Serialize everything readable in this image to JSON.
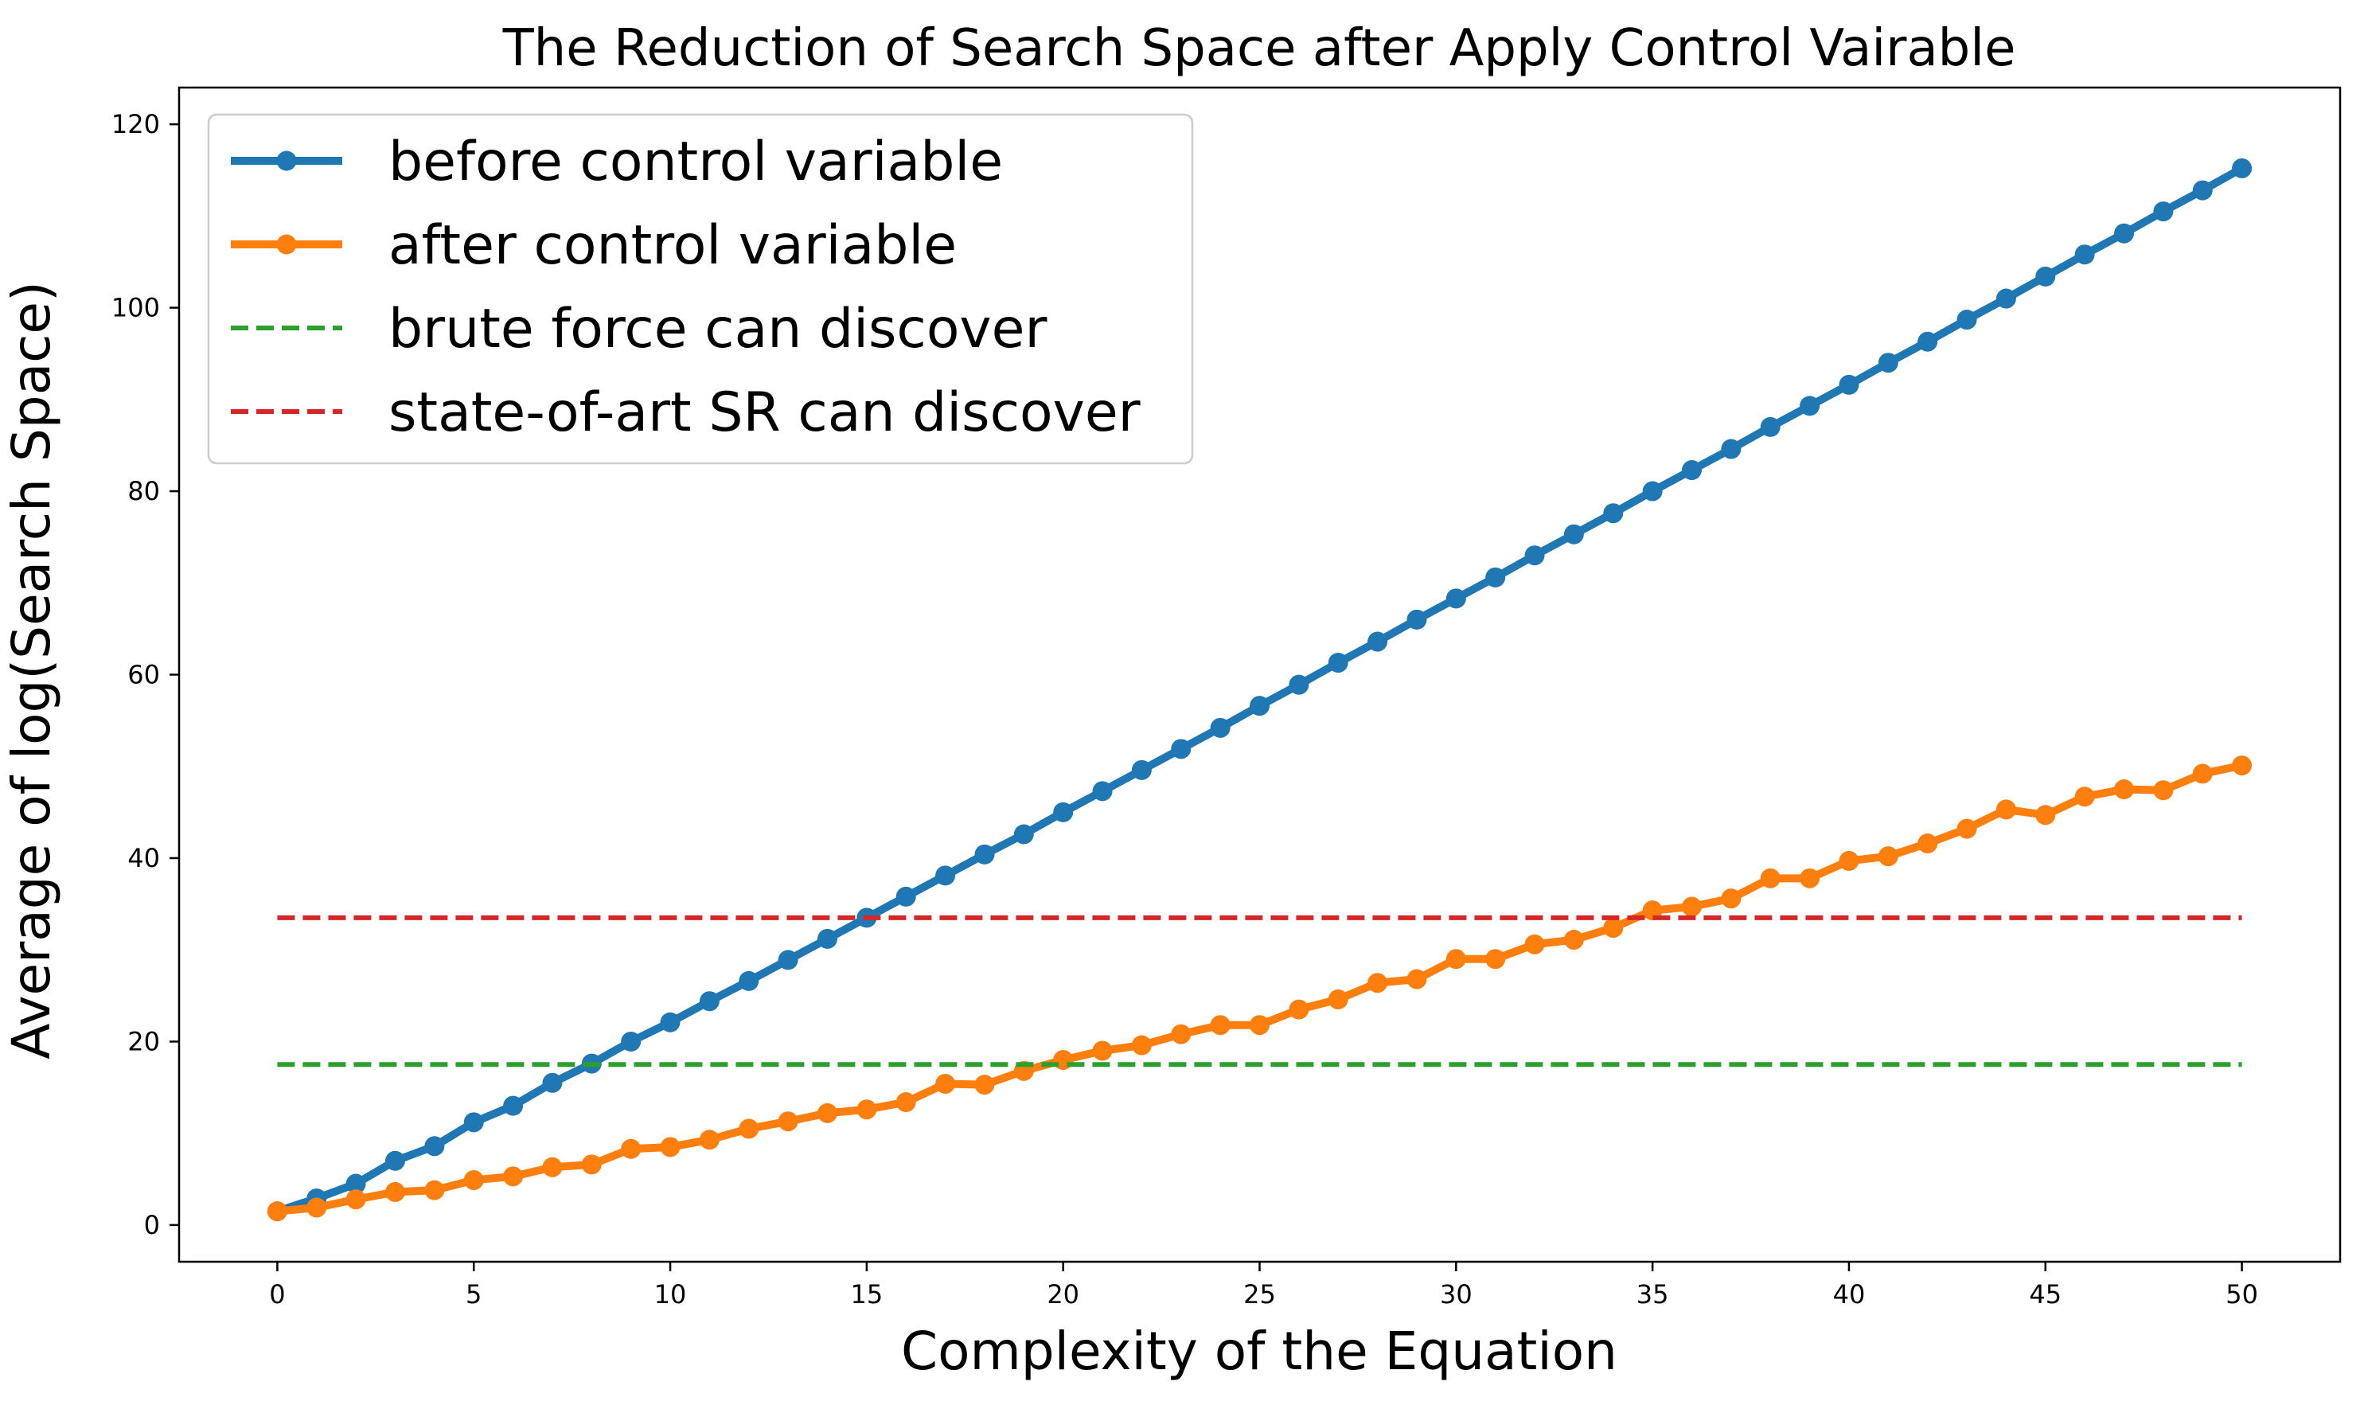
{
  "chart_data": {
    "type": "line",
    "title": "The Reduction of Search Space after Apply Control Vairable",
    "xlabel": "Complexity of the Equation",
    "ylabel": "Average of log(Search Space)",
    "xlim": [
      -2.5,
      52.5
    ],
    "ylim": [
      -4,
      124
    ],
    "xticks": [
      0,
      5,
      10,
      15,
      20,
      25,
      30,
      35,
      40,
      45,
      50
    ],
    "yticks": [
      0,
      20,
      40,
      60,
      80,
      100,
      120
    ],
    "grid": false,
    "legend_position": "top-left",
    "x": [
      0,
      1,
      2,
      3,
      4,
      5,
      6,
      7,
      8,
      9,
      10,
      11,
      12,
      13,
      14,
      15,
      16,
      17,
      18,
      19,
      20,
      21,
      22,
      23,
      24,
      25,
      26,
      27,
      28,
      29,
      30,
      31,
      32,
      33,
      34,
      35,
      36,
      37,
      38,
      39,
      40,
      41,
      42,
      43,
      44,
      45,
      46,
      47,
      48,
      49,
      50
    ],
    "series": [
      {
        "name": "before control variable",
        "color": "#1f77b4",
        "style": "line-marker",
        "values": [
          1.5,
          2.9,
          4.5,
          7.0,
          8.6,
          11.2,
          13.0,
          15.5,
          17.6,
          20.0,
          22.1,
          24.4,
          26.6,
          28.9,
          31.2,
          33.5,
          35.8,
          38.1,
          40.4,
          42.6,
          45.0,
          47.3,
          49.6,
          51.9,
          54.2,
          56.6,
          58.9,
          61.3,
          63.6,
          66.0,
          68.3,
          70.6,
          73.0,
          75.3,
          77.6,
          80.0,
          82.3,
          84.6,
          87.0,
          89.3,
          91.6,
          94.0,
          96.3,
          98.7,
          101.0,
          103.4,
          105.8,
          108.1,
          110.5,
          112.8,
          115.2
        ]
      },
      {
        "name": "after control variable",
        "color": "#ff7f0e",
        "style": "line-marker",
        "values": [
          1.5,
          1.9,
          2.8,
          3.6,
          3.8,
          4.9,
          5.3,
          6.3,
          6.6,
          8.3,
          8.5,
          9.3,
          10.5,
          11.3,
          12.2,
          12.6,
          13.4,
          15.4,
          15.3,
          16.8,
          18.0,
          19.0,
          19.6,
          20.8,
          21.8,
          21.8,
          23.5,
          24.6,
          26.4,
          26.8,
          29.0,
          29.0,
          30.6,
          31.1,
          32.4,
          34.3,
          34.7,
          35.6,
          37.8,
          37.8,
          39.7,
          40.2,
          41.6,
          43.2,
          45.3,
          44.7,
          46.7,
          47.5,
          47.4,
          49.2,
          50.1
        ]
      },
      {
        "name": "brute force can discover",
        "color": "#2ca02c",
        "style": "dashed",
        "values": [
          17.5,
          17.5
        ],
        "x": [
          0,
          50
        ]
      },
      {
        "name": "state-of-art SR can discover",
        "color": "#d62728",
        "style": "dashed",
        "values": [
          33.5,
          33.5
        ],
        "x": [
          0,
          50
        ]
      }
    ]
  }
}
